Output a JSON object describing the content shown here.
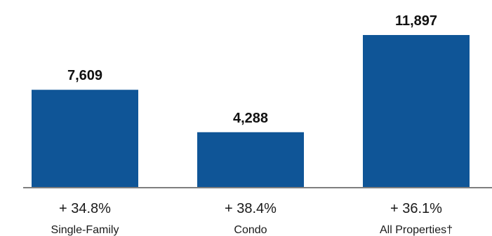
{
  "chart_data": {
    "type": "bar",
    "categories": [
      "Single-Family",
      "Condo",
      "All Properties†"
    ],
    "values": [
      7609,
      4288,
      11897
    ],
    "value_labels": [
      "7,609",
      "4,288",
      "11,897"
    ],
    "change_labels": [
      "+ 34.8%",
      "+ 38.4%",
      "+ 36.1%"
    ],
    "title": "",
    "xlabel": "",
    "ylabel": "",
    "ylim": [
      0,
      11897
    ],
    "grid": false,
    "legend": "none",
    "colors": {
      "bar": "#0f5597",
      "baseline": "#7f7f7f",
      "text": "#111111"
    }
  }
}
